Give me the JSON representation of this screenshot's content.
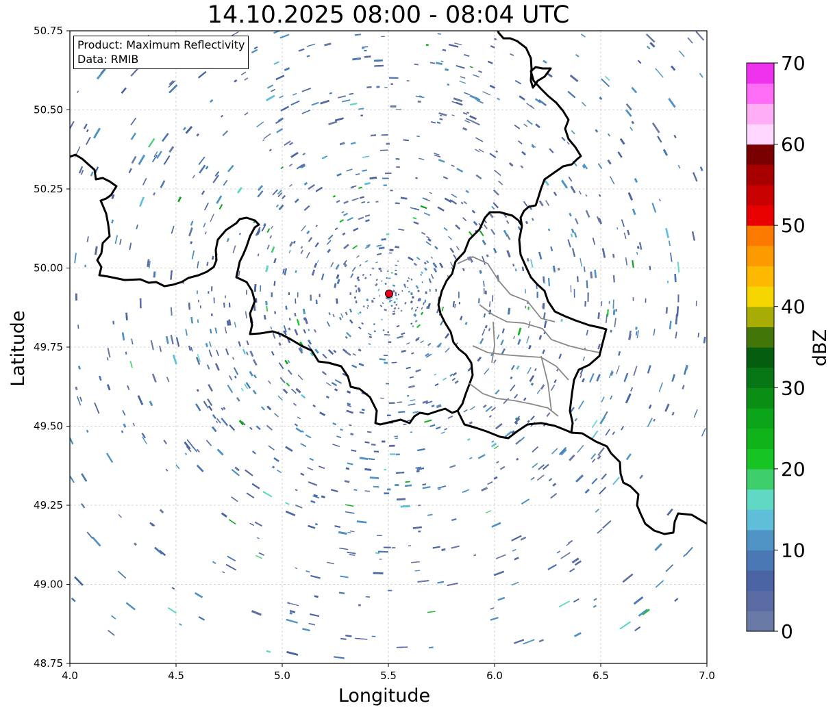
{
  "title": "14.10.2025 08:00 - 08:04 UTC",
  "info": {
    "product": "Product: Maximum Reflectivity",
    "data": "Data: RMIB"
  },
  "chart_data": {
    "type": "heatmap",
    "title": "14.10.2025 08:00 - 08:04 UTC",
    "xlabel": "Longitude",
    "ylabel": "Latitude",
    "xlim": [
      4.0,
      7.0
    ],
    "ylim": [
      48.75,
      50.75
    ],
    "x_ticks": [
      "4.0",
      "4.5",
      "5.0",
      "5.5",
      "6.0",
      "6.5",
      "7.0"
    ],
    "y_ticks": [
      "48.75",
      "49.00",
      "49.25",
      "49.50",
      "49.75",
      "50.00",
      "50.25",
      "50.50",
      "50.75"
    ],
    "grid": true,
    "radar_site": {
      "lon": 5.505,
      "lat": 49.915
    },
    "colorbar": {
      "label": "dBZ",
      "range": [
        0,
        70
      ],
      "ticks": [
        "0",
        "10",
        "20",
        "30",
        "40",
        "50",
        "60",
        "70"
      ],
      "step": 2.5,
      "colors": [
        "#6a7aa6",
        "#5a6ca3",
        "#4a64a4",
        "#4a78b4",
        "#4f93c4",
        "#5fbfd9",
        "#5fd8c4",
        "#3ecf6c",
        "#16c424",
        "#10b41a",
        "#0ca418",
        "#0a8e14",
        "#077614",
        "#055e10",
        "#427608",
        "#a8ad06",
        "#f6d600",
        "#fcb900",
        "#fc9a00",
        "#fc7a00",
        "#e80000",
        "#c80000",
        "#a80000",
        "#7a0000",
        "#ffd6ff",
        "#ffaef6",
        "#ff6cf6",
        "#ee32ee"
      ]
    },
    "echo_intensity_mix": {
      "low_blue_share": 0.93,
      "cyan_share": 0.04,
      "green_share": 0.03
    }
  }
}
